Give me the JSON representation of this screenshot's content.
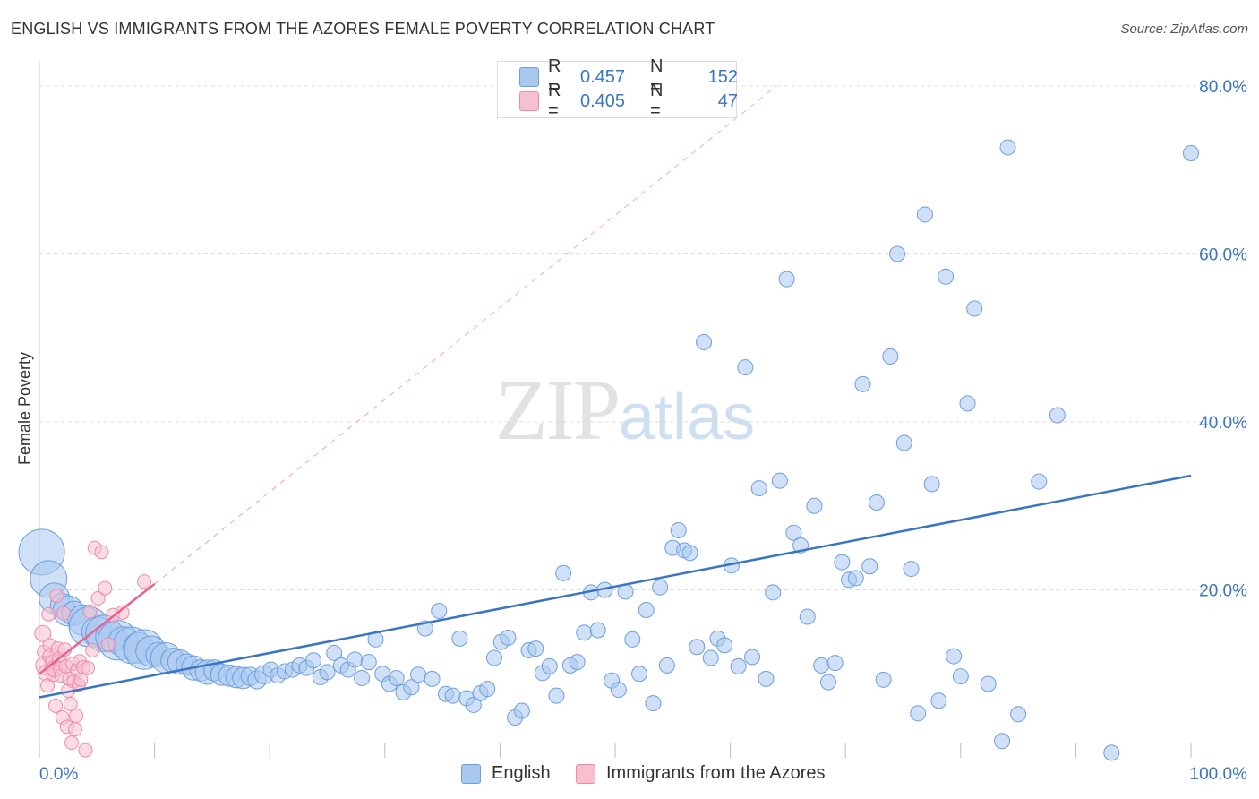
{
  "title": "ENGLISH VS IMMIGRANTS FROM THE AZORES FEMALE POVERTY CORRELATION CHART",
  "source": "Source: ZipAtlas.com",
  "watermark": {
    "zip": "ZIP",
    "atlas": "atlas"
  },
  "legend_top": [
    {
      "r_label": "R =",
      "r_value": "0.457",
      "n_label": "N =",
      "n_value": "152",
      "color": "#a9c8f0",
      "border": "#6b9fde"
    },
    {
      "r_label": "R =",
      "r_value": "0.405",
      "n_label": "N =",
      "n_value": "47",
      "color": "#f7c0cf",
      "border": "#ef8aa6"
    }
  ],
  "legend_bottom": [
    {
      "label": "English",
      "color": "#a9c8f0",
      "border": "#6b9fde"
    },
    {
      "label": "Immigrants from the Azores",
      "color": "#f7c0cf",
      "border": "#ef8aa6"
    }
  ],
  "chart_data": {
    "type": "scatter",
    "title": "ENGLISH VS IMMIGRANTS FROM THE AZORES FEMALE POVERTY CORRELATION CHART",
    "xlabel": "",
    "ylabel": "Female Poverty",
    "xlim": [
      0,
      100
    ],
    "ylim": [
      0,
      80
    ],
    "x_tick_labels": [
      "0.0%",
      "100.0%"
    ],
    "y_tick_labels": [
      "20.0%",
      "40.0%",
      "60.0%",
      "80.0%"
    ],
    "y_ticks": [
      20,
      40,
      60,
      80
    ],
    "grid": true,
    "colors": {
      "english": "#3a75c4",
      "azores": "#e8618c",
      "english_fill": "#a9c8f0",
      "azores_fill": "#f7c0cf"
    },
    "series": [
      {
        "name": "English",
        "trend": [
          [
            0,
            7.2
          ],
          [
            100,
            33.6
          ]
        ],
        "points": [
          [
            0.2,
            24.5,
            3
          ],
          [
            0.8,
            21.3,
            2.4
          ],
          [
            1.3,
            19.0,
            2
          ],
          [
            2,
            18.1,
            1.6
          ],
          [
            2.5,
            17.5,
            2
          ],
          [
            3.0,
            17.2,
            1.6
          ],
          [
            3.8,
            16.4,
            2
          ],
          [
            4.3,
            15.6,
            2.6
          ],
          [
            5,
            15.0,
            2
          ],
          [
            5.6,
            14.8,
            2.4
          ],
          [
            6.2,
            14.4,
            2
          ],
          [
            6.8,
            14.0,
            2.6
          ],
          [
            7.3,
            13.8,
            2
          ],
          [
            8,
            13.4,
            2.4
          ],
          [
            8.6,
            13.1,
            2
          ],
          [
            9.1,
            12.9,
            2.6
          ],
          [
            9.7,
            12.7,
            2
          ],
          [
            10.3,
            12.3,
            1.6
          ],
          [
            11,
            11.9,
            2
          ],
          [
            11.6,
            11.6,
            1.6
          ],
          [
            12.2,
            11.4,
            1.6
          ],
          [
            12.8,
            11.1,
            1.4
          ],
          [
            13.4,
            10.7,
            1.6
          ],
          [
            14,
            10.4,
            1.4
          ],
          [
            14.6,
            10.2,
            1.6
          ],
          [
            15.2,
            10.4,
            1.4
          ],
          [
            15.8,
            9.9,
            1.4
          ],
          [
            16.5,
            9.8,
            1.4
          ],
          [
            17.1,
            9.6,
            1.4
          ],
          [
            17.7,
            9.5,
            1.4
          ],
          [
            18.3,
            9.7,
            1.2
          ],
          [
            18.9,
            9.3,
            1.2
          ],
          [
            19.5,
            9.9,
            1.2
          ],
          [
            20.1,
            10.5,
            1
          ],
          [
            20.7,
            9.8,
            1
          ],
          [
            21.3,
            10.3,
            1
          ],
          [
            22,
            10.5,
            1
          ],
          [
            22.6,
            11.0,
            1
          ],
          [
            23.2,
            10.7,
            1
          ],
          [
            23.8,
            11.6,
            1
          ],
          [
            24.4,
            9.6,
            1
          ],
          [
            25,
            10.2,
            1
          ],
          [
            25.6,
            12.5,
            1
          ],
          [
            26.2,
            11.0,
            1
          ],
          [
            26.8,
            10.5,
            1
          ],
          [
            27.4,
            11.7,
            1
          ],
          [
            28,
            9.5,
            1
          ],
          [
            28.6,
            11.4,
            1
          ],
          [
            29.2,
            14.1,
            1
          ],
          [
            29.8,
            10.0,
            1
          ],
          [
            30.4,
            8.8,
            1
          ],
          [
            31,
            9.5,
            1
          ],
          [
            31.6,
            7.8,
            1
          ],
          [
            32.3,
            8.4,
            1
          ],
          [
            32.9,
            9.9,
            1
          ],
          [
            33.5,
            15.4,
            1
          ],
          [
            34.1,
            9.4,
            1
          ],
          [
            34.7,
            17.5,
            1
          ],
          [
            35.3,
            7.6,
            1
          ],
          [
            35.9,
            7.4,
            1
          ],
          [
            36.5,
            14.2,
            1
          ],
          [
            37.1,
            7.1,
            1
          ],
          [
            37.7,
            6.3,
            1
          ],
          [
            38.3,
            7.7,
            1
          ],
          [
            38.9,
            8.2,
            1
          ],
          [
            39.5,
            11.9,
            1
          ],
          [
            40.1,
            13.8,
            1
          ],
          [
            40.7,
            14.3,
            1
          ],
          [
            41.3,
            4.8,
            1
          ],
          [
            41.9,
            5.6,
            1
          ],
          [
            42.5,
            12.8,
            1
          ],
          [
            43.1,
            13.0,
            1
          ],
          [
            43.7,
            10.1,
            1
          ],
          [
            44.3,
            10.9,
            1
          ],
          [
            44.9,
            7.4,
            1
          ],
          [
            45.5,
            22.0,
            1
          ],
          [
            46.1,
            11.0,
            1
          ],
          [
            46.7,
            11.4,
            1
          ],
          [
            47.3,
            14.9,
            1
          ],
          [
            47.9,
            19.7,
            1
          ],
          [
            48.5,
            15.2,
            1
          ],
          [
            49.1,
            20.0,
            1
          ],
          [
            49.7,
            9.2,
            1
          ],
          [
            50.3,
            8.1,
            1
          ],
          [
            50.9,
            19.8,
            1
          ],
          [
            51.5,
            14.1,
            1
          ],
          [
            52.1,
            10.0,
            1
          ],
          [
            52.7,
            17.6,
            1
          ],
          [
            53.3,
            6.5,
            1
          ],
          [
            53.9,
            20.3,
            1
          ],
          [
            54.5,
            11.0,
            1
          ],
          [
            55,
            25.0,
            1
          ],
          [
            55.5,
            27.1,
            1
          ],
          [
            56,
            24.7,
            1
          ],
          [
            56.5,
            24.4,
            1
          ],
          [
            57.1,
            13.2,
            1
          ],
          [
            57.7,
            49.5,
            1
          ],
          [
            58.3,
            11.9,
            1
          ],
          [
            58.9,
            14.2,
            1
          ],
          [
            59.5,
            13.4,
            1
          ],
          [
            60.1,
            22.9,
            1
          ],
          [
            60.7,
            10.9,
            1
          ],
          [
            61.3,
            46.5,
            1
          ],
          [
            61.9,
            12.0,
            1
          ],
          [
            62.5,
            32.1,
            1
          ],
          [
            63.1,
            9.4,
            1
          ],
          [
            63.7,
            19.7,
            1
          ],
          [
            64.3,
            33.0,
            1
          ],
          [
            64.9,
            57.0,
            1
          ],
          [
            65.5,
            26.8,
            1
          ],
          [
            66.1,
            25.3,
            1
          ],
          [
            66.7,
            16.8,
            1
          ],
          [
            67.3,
            30.0,
            1
          ],
          [
            67.9,
            11.0,
            1
          ],
          [
            68.5,
            9.0,
            1
          ],
          [
            69.1,
            11.3,
            1
          ],
          [
            69.7,
            23.3,
            1
          ],
          [
            70.3,
            21.2,
            1
          ],
          [
            70.9,
            21.4,
            1
          ],
          [
            71.5,
            44.5,
            1
          ],
          [
            72.1,
            22.8,
            1
          ],
          [
            72.7,
            30.4,
            1
          ],
          [
            73.3,
            9.3,
            1
          ],
          [
            73.9,
            47.8,
            1
          ],
          [
            74.5,
            60.0,
            1
          ],
          [
            75.1,
            37.5,
            1
          ],
          [
            75.7,
            22.5,
            1
          ],
          [
            76.3,
            5.3,
            1
          ],
          [
            76.9,
            64.7,
            1
          ],
          [
            77.5,
            32.6,
            1
          ],
          [
            78.1,
            6.8,
            1
          ],
          [
            78.7,
            57.3,
            1
          ],
          [
            79.4,
            12.1,
            1
          ],
          [
            80,
            9.7,
            1
          ],
          [
            80.6,
            42.2,
            1
          ],
          [
            81.2,
            53.5,
            1
          ],
          [
            82.4,
            8.8,
            1
          ],
          [
            83.6,
            2.0,
            1
          ],
          [
            84.1,
            72.7,
            1
          ],
          [
            85,
            5.2,
            1
          ],
          [
            86.8,
            32.9,
            1
          ],
          [
            88.4,
            40.8,
            1
          ],
          [
            93.1,
            0.6,
            1
          ],
          [
            100,
            72.0,
            1
          ]
        ]
      },
      {
        "name": "Immigrants from the Azores",
        "trend": [
          [
            0,
            10.0
          ],
          [
            10,
            20.7
          ]
        ],
        "trend_extension": [
          [
            10,
            20.7
          ],
          [
            64,
            80
          ]
        ],
        "points": [
          [
            0.3,
            14.8,
            1.2
          ],
          [
            0.4,
            12.6,
            1
          ],
          [
            0.5,
            11.0,
            1.4
          ],
          [
            0.6,
            10.1,
            1.2
          ],
          [
            0.7,
            8.6,
            1
          ],
          [
            0.8,
            17.1,
            1
          ],
          [
            0.9,
            13.4,
            1
          ],
          [
            1.0,
            12.1,
            1.2
          ],
          [
            1.1,
            11.4,
            1
          ],
          [
            1.2,
            9.9,
            1
          ],
          [
            1.3,
            10.6,
            1.2
          ],
          [
            1.4,
            6.2,
            1
          ],
          [
            1.5,
            19.3,
            1
          ],
          [
            1.6,
            13.0,
            1
          ],
          [
            1.7,
            11.8,
            1
          ],
          [
            1.8,
            10.7,
            1
          ],
          [
            1.9,
            9.8,
            1
          ],
          [
            2.0,
            4.8,
            1
          ],
          [
            2.1,
            17.2,
            1
          ],
          [
            2.2,
            12.9,
            1
          ],
          [
            2.3,
            10.9,
            1
          ],
          [
            2.4,
            3.7,
            1
          ],
          [
            2.5,
            8.0,
            1
          ],
          [
            2.6,
            9.4,
            1
          ],
          [
            2.7,
            6.4,
            1
          ],
          [
            2.8,
            1.8,
            1
          ],
          [
            2.9,
            11.2,
            1
          ],
          [
            3.0,
            9.1,
            1
          ],
          [
            3.1,
            3.4,
            1
          ],
          [
            3.2,
            5.0,
            1
          ],
          [
            3.3,
            10.4,
            1
          ],
          [
            3.4,
            8.7,
            1
          ],
          [
            3.5,
            11.5,
            1
          ],
          [
            3.6,
            9.3,
            1
          ],
          [
            3.8,
            10.8,
            1
          ],
          [
            4.0,
            0.9,
            1
          ],
          [
            4.2,
            10.7,
            1
          ],
          [
            4.4,
            17.4,
            1
          ],
          [
            4.6,
            12.8,
            1
          ],
          [
            4.8,
            25.0,
            1
          ],
          [
            5.1,
            19.0,
            1
          ],
          [
            5.4,
            24.5,
            1
          ],
          [
            5.7,
            20.2,
            1
          ],
          [
            6.0,
            13.5,
            1
          ],
          [
            6.4,
            17.0,
            1
          ],
          [
            7.2,
            17.3,
            1
          ],
          [
            9.1,
            21.0,
            1
          ]
        ]
      }
    ]
  }
}
